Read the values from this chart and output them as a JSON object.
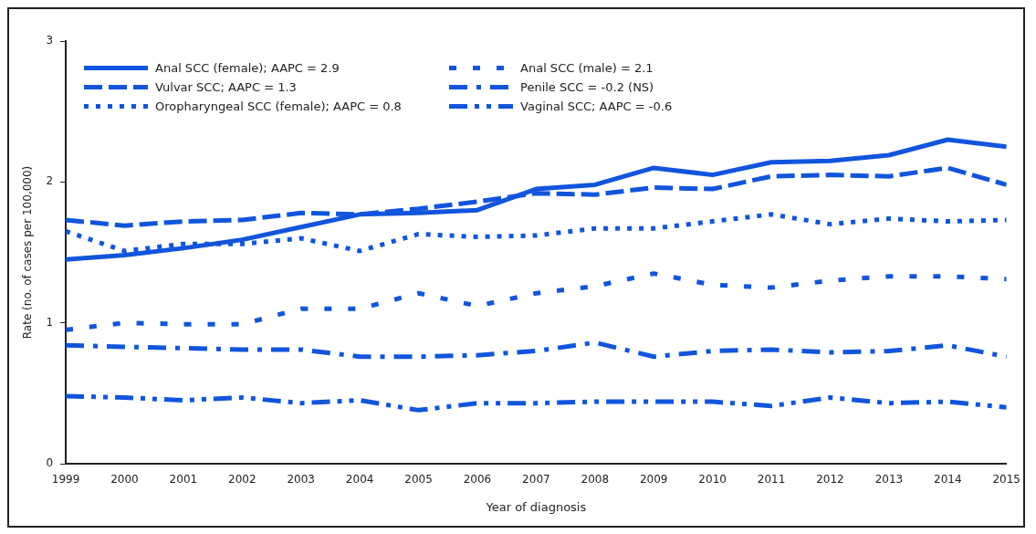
{
  "chart_data": {
    "type": "line",
    "xlabel": "Year of diagnosis",
    "ylabel": "Rate (no. of cases per 100,000)",
    "x": [
      1999,
      2000,
      2001,
      2002,
      2003,
      2004,
      2005,
      2006,
      2007,
      2008,
      2009,
      2010,
      2011,
      2012,
      2013,
      2014,
      2015
    ],
    "xlim": [
      1999,
      2015
    ],
    "xticks": [
      1999,
      2000,
      2001,
      2002,
      2003,
      2004,
      2005,
      2006,
      2007,
      2008,
      2009,
      2010,
      2011,
      2012,
      2013,
      2014,
      2015
    ],
    "ylim": [
      0,
      3
    ],
    "yticks": [
      0,
      1,
      2,
      3
    ],
    "grid": false,
    "legend": "top left",
    "marker": "none",
    "series": [
      {
        "name": "Anal SCC (female); AAPC = 2.9",
        "color": "#1155dd",
        "line_style": "solid",
        "values": [
          1.45,
          1.48,
          1.53,
          1.59,
          1.68,
          1.77,
          1.78,
          1.8,
          1.95,
          1.98,
          2.1,
          2.05,
          2.14,
          2.15,
          2.19,
          2.3,
          2.25
        ]
      },
      {
        "name": "Vulvar SCC; AAPC = 1.3",
        "color": "#1155dd",
        "line_style": "dashed",
        "values": [
          1.73,
          1.69,
          1.72,
          1.73,
          1.78,
          1.77,
          1.81,
          1.86,
          1.92,
          1.91,
          1.96,
          1.95,
          2.04,
          2.05,
          2.04,
          2.1,
          1.98
        ]
      },
      {
        "name": "Oropharyngeal SCC (female); AAPC = 0.8",
        "color": "#1155dd",
        "line_style": "dotted",
        "values": [
          1.65,
          1.51,
          1.56,
          1.56,
          1.6,
          1.51,
          1.63,
          1.61,
          1.62,
          1.67,
          1.67,
          1.72,
          1.77,
          1.7,
          1.74,
          1.72,
          1.73
        ]
      },
      {
        "name": "Anal SCC (male) = 2.1",
        "color": "#1155dd",
        "line_style": "loosely_dotted",
        "values": [
          0.95,
          1.0,
          0.99,
          0.99,
          1.1,
          1.1,
          1.21,
          1.12,
          1.21,
          1.26,
          1.35,
          1.27,
          1.25,
          1.3,
          1.33,
          1.33,
          1.31
        ]
      },
      {
        "name": "Penile SCC = -0.2 (NS)",
        "color": "#1155dd",
        "line_style": "dashdot",
        "values": [
          0.84,
          0.83,
          0.82,
          0.81,
          0.81,
          0.76,
          0.76,
          0.77,
          0.8,
          0.86,
          0.76,
          0.8,
          0.81,
          0.79,
          0.8,
          0.84,
          0.76
        ]
      },
      {
        "name": "Vaginal SCC; AAPC = -0.6",
        "color": "#1155dd",
        "line_style": "dashdotdot",
        "values": [
          0.48,
          0.47,
          0.45,
          0.47,
          0.43,
          0.45,
          0.38,
          0.43,
          0.43,
          0.44,
          0.44,
          0.44,
          0.41,
          0.47,
          0.43,
          0.44,
          0.4
        ]
      }
    ]
  }
}
